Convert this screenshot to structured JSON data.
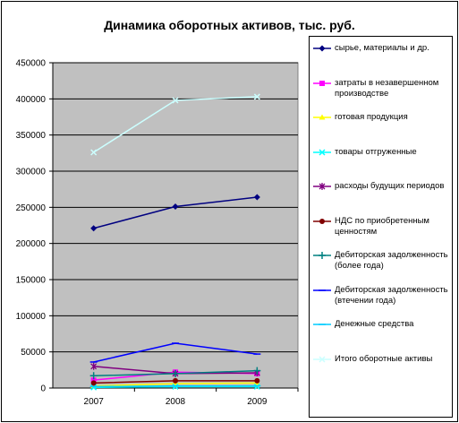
{
  "chart_data": {
    "type": "line",
    "title": "Динамика оборотных активов, тыс. руб.",
    "x": [
      "2007",
      "2008",
      "2009"
    ],
    "ylim": [
      0,
      450000
    ],
    "yticks": [
      "0",
      "50000",
      "100000",
      "150000",
      "200000",
      "250000",
      "300000",
      "350000",
      "400000",
      "450000"
    ],
    "grid": true,
    "plot_background": "#c0c0c0",
    "legend_position": "right",
    "series": [
      {
        "name": "сырье, материалы и др.",
        "values": [
          221000,
          251000,
          264000
        ],
        "color": "#000080",
        "marker": "diamond"
      },
      {
        "name": "затраты в незавершенном производстве",
        "values": [
          11000,
          22000,
          20000
        ],
        "color": "#ff00ff",
        "marker": "square"
      },
      {
        "name": "готовая продукция",
        "values": [
          3000,
          6000,
          7000
        ],
        "color": "#ffff00",
        "marker": "triangle"
      },
      {
        "name": "товары отгруженные",
        "values": [
          1000,
          2000,
          2000
        ],
        "color": "#00ffff",
        "marker": "x"
      },
      {
        "name": "расходы будущих периодов",
        "values": [
          30000,
          20000,
          21000
        ],
        "color": "#800080",
        "marker": "star"
      },
      {
        "name": "НДС по приобретенным ценностям",
        "values": [
          7000,
          10000,
          10000
        ],
        "color": "#800000",
        "marker": "circle"
      },
      {
        "name": "Дебиторская задолженность (более года)",
        "values": [
          17000,
          20000,
          24000
        ],
        "color": "#008080",
        "marker": "plus"
      },
      {
        "name": "Дебиторская задолженность (втечении года)",
        "values": [
          36000,
          62000,
          47000
        ],
        "color": "#0000ff",
        "marker": "dash"
      },
      {
        "name": "Денежные средства",
        "values": [
          2000,
          3000,
          3000
        ],
        "color": "#00ccff",
        "marker": "dash"
      },
      {
        "name": "Итого оборотные активы",
        "values": [
          326000,
          398000,
          403000
        ],
        "color": "#ccffff",
        "marker": "x"
      }
    ]
  }
}
